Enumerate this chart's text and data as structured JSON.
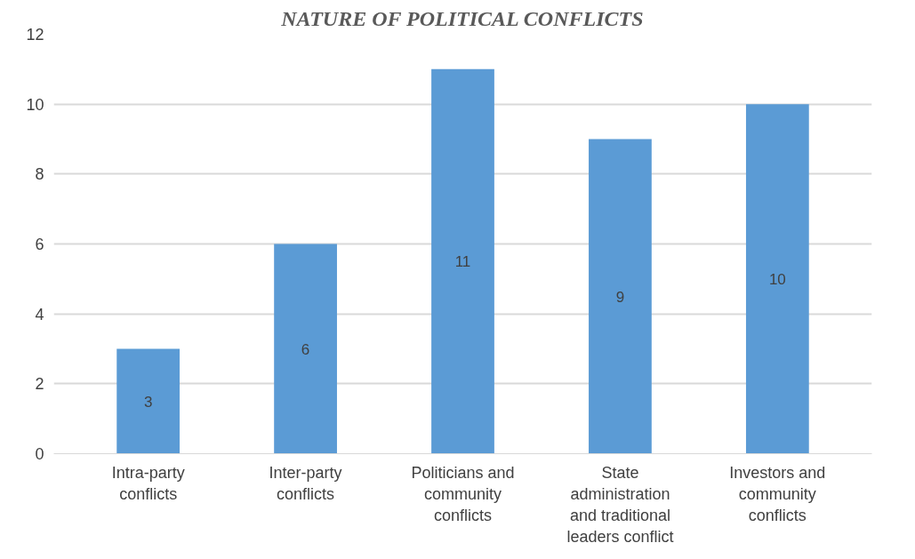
{
  "chart_data": {
    "type": "bar",
    "title": "NATURE OF POLITICAL CONFLICTS",
    "categories": [
      "Intra-party conflicts",
      "Inter-party conflicts",
      "Politicians and community conflicts",
      "State administration and traditional leaders conflict",
      "Investors and community conflicts"
    ],
    "values": [
      3,
      6,
      11,
      9,
      10
    ],
    "color": "#5b9bd5",
    "ylim": [
      0,
      12
    ],
    "yticks": [
      0,
      2,
      4,
      6,
      8,
      10,
      12
    ],
    "grid": "y",
    "data_labels": true
  }
}
